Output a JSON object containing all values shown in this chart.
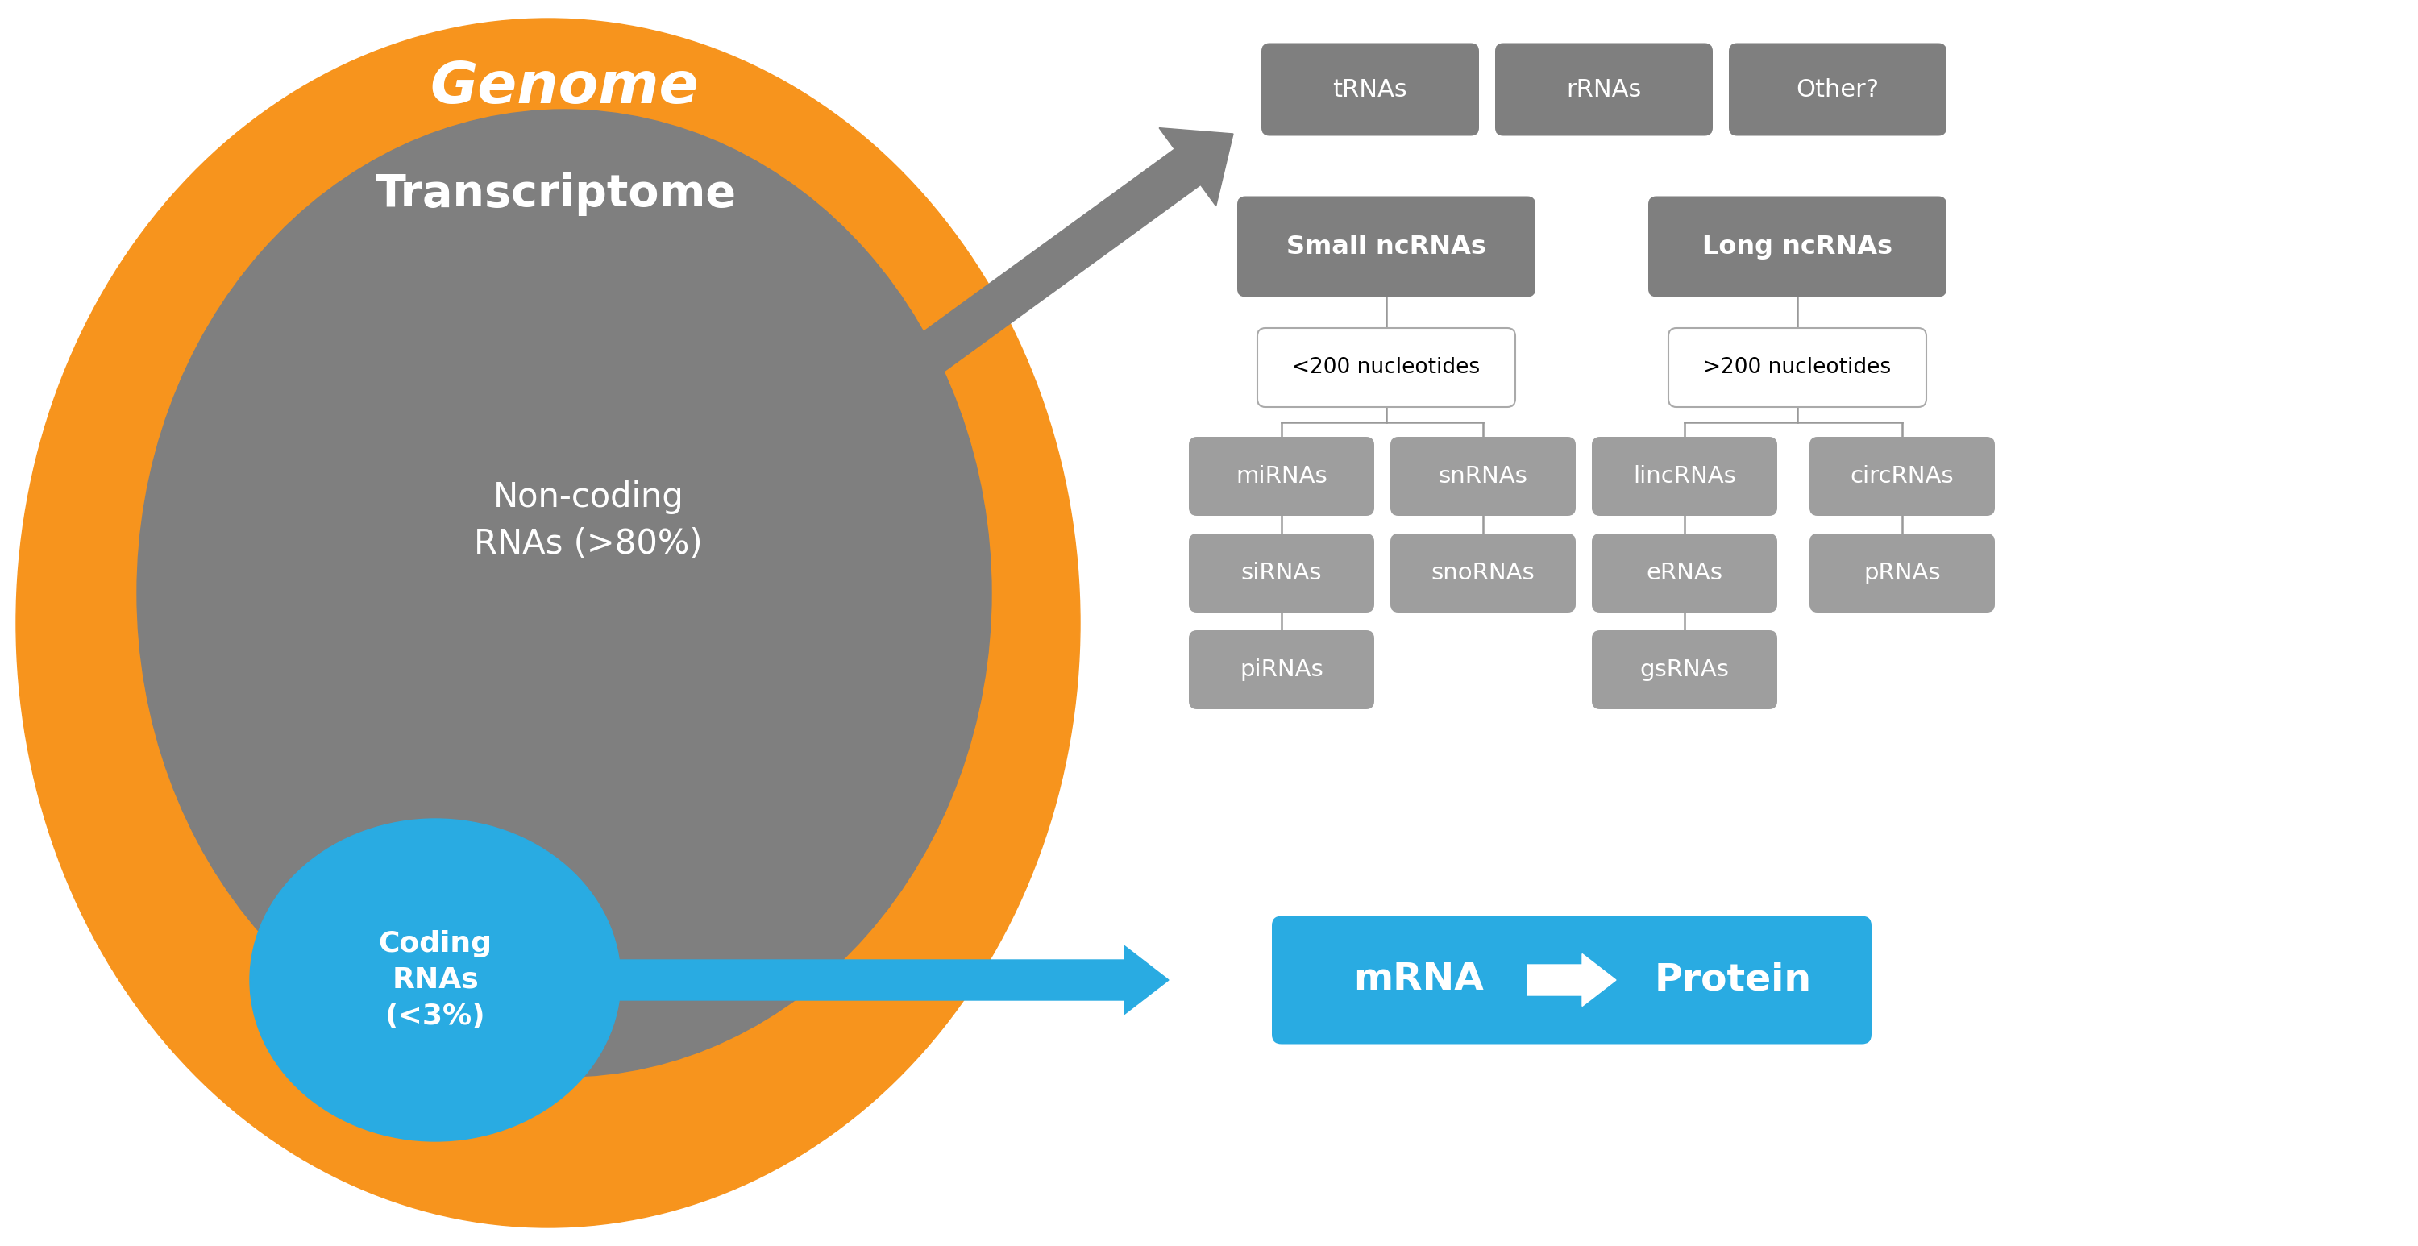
{
  "bg_color": "#ffffff",
  "orange_color": "#F7941D",
  "gray_circle_color": "#7F7F7F",
  "blue_circle_color": "#29ABE2",
  "genome_label": "Genome",
  "transcriptome_label": "Transcriptome",
  "noncoding_label": "Non-coding\nRNAs (>80%)",
  "coding_label": "Coding\nRNAs\n(<3%)",
  "small_ncrna_label": "Small ncRNAs",
  "long_ncrna_label": "Long ncRNAs",
  "small_sub_label": "<200 nucleotides",
  "long_sub_label": ">200 nucleotides",
  "top_boxes": [
    "tRNAs",
    "rRNAs",
    "Other?"
  ],
  "small_children_row1": [
    "miRNAs",
    "snRNAs"
  ],
  "small_children_row2": [
    "siRNAs",
    "snoRNAs"
  ],
  "small_children_row3": [
    "piRNAs"
  ],
  "long_children_row1": [
    "lincRNAs",
    "circRNAs"
  ],
  "long_children_row2": [
    "eRNAs",
    "pRNAs"
  ],
  "long_children_row3": [
    "gsRNAs"
  ],
  "mrna_label": "mRNA",
  "protein_label": "Protein",
  "gray_arrow_color": "#7F7F7F",
  "blue_arrow_color": "#29ABE2",
  "line_color": "#999999",
  "box_dark_color": "#7F7F7F",
  "box_child_color": "#9E9E9E"
}
